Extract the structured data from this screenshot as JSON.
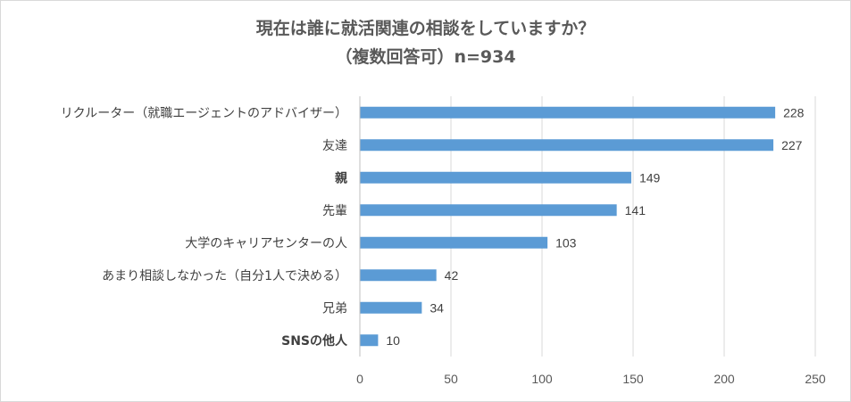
{
  "chart_data": {
    "type": "bar",
    "orientation": "horizontal",
    "title": "現在は誰に就活関連の相談をしていますか？",
    "subtitle": "（複数回答可）n=934",
    "categories": [
      "リクルーター（就職エージェントのアドバイザー）",
      "友達",
      "親",
      "先輩",
      "大学のキャリアセンターの人",
      "あまり相談しなかった（自分1人で決める）",
      "兄弟",
      "SNSの他人"
    ],
    "values": [
      228,
      227,
      149,
      141,
      103,
      42,
      34,
      10
    ],
    "xlim": [
      0,
      250
    ],
    "xticks": [
      0,
      50,
      100,
      150,
      200,
      250
    ],
    "grid": "vertical",
    "bar_color": "#5b9bd5",
    "legend": "none"
  }
}
